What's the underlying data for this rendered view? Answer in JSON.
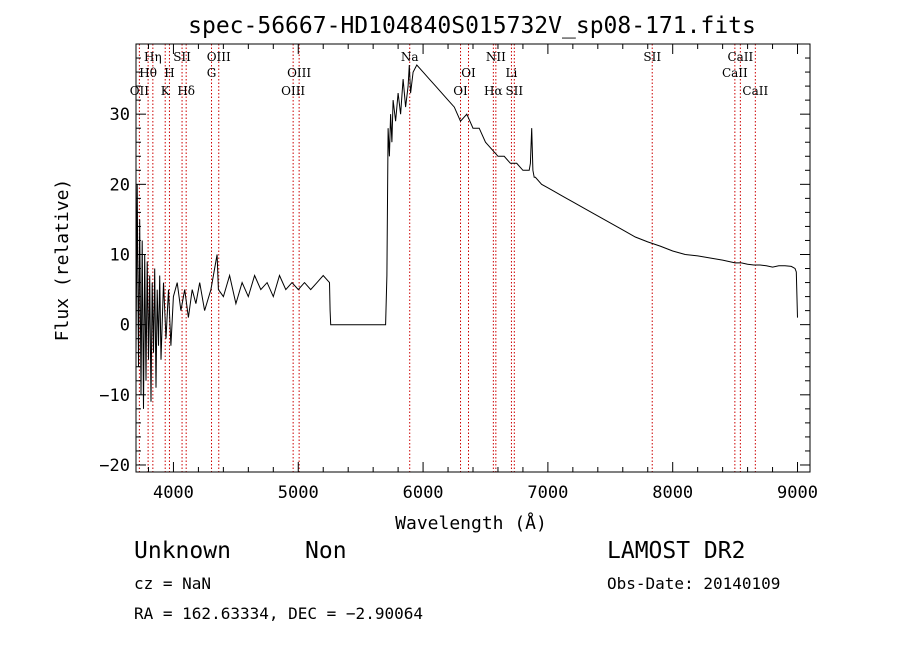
{
  "chart_data": {
    "type": "line",
    "title": "spec-56667-HD104840S015732V_sp08-171.fits",
    "xlabel": "Wavelength (Å)",
    "ylabel": "Flux (relative)",
    "xlim": [
      3700,
      9100
    ],
    "ylim": [
      -21,
      40
    ],
    "xticks": [
      4000,
      5000,
      6000,
      7000,
      8000,
      9000
    ],
    "xtick_labels": [
      "4000",
      "5000",
      "6000",
      "7000",
      "8000",
      "9000"
    ],
    "yticks": [
      -20,
      -10,
      0,
      10,
      20,
      30
    ],
    "ytick_labels": [
      "−20",
      "−10",
      "0",
      "10",
      "20",
      "30"
    ],
    "grid": false,
    "series": [
      {
        "color": "#000000",
        "x": [
          3700,
          3710,
          3720,
          3730,
          3740,
          3750,
          3760,
          3770,
          3780,
          3790,
          3800,
          3810,
          3820,
          3830,
          3840,
          3850,
          3860,
          3870,
          3880,
          3890,
          3900,
          3920,
          3940,
          3960,
          3980,
          4000,
          4030,
          4060,
          4090,
          4120,
          4150,
          4180,
          4210,
          4250,
          4300,
          4350,
          4360,
          4400,
          4450,
          4500,
          4550,
          4600,
          4650,
          4700,
          4750,
          4800,
          4850,
          4900,
          4950,
          5000,
          5050,
          5100,
          5150,
          5200,
          5250,
          5255,
          5260,
          5400,
          5600,
          5700,
          5710,
          5720,
          5730,
          5740,
          5750,
          5760,
          5780,
          5800,
          5820,
          5840,
          5860,
          5880,
          5890,
          5900,
          5920,
          5950,
          6000,
          6050,
          6100,
          6150,
          6200,
          6250,
          6300,
          6350,
          6400,
          6450,
          6500,
          6550,
          6600,
          6650,
          6700,
          6750,
          6800,
          6850,
          6860,
          6870,
          6880,
          6890,
          6900,
          6950,
          7000,
          7050,
          7100,
          7150,
          7200,
          7250,
          7300,
          7400,
          7500,
          7600,
          7700,
          7800,
          7900,
          8000,
          8100,
          8200,
          8300,
          8400,
          8500,
          8550,
          8600,
          8650,
          8700,
          8750,
          8800,
          8850,
          8900,
          8950,
          8980,
          8990,
          9000
        ],
        "values": [
          -4,
          20,
          -6,
          15,
          -10,
          12,
          -12,
          10,
          -8,
          9,
          -5,
          7,
          -11,
          6,
          -4,
          8,
          -9,
          5,
          -3,
          7,
          -5,
          6,
          -2,
          5,
          -3,
          4,
          6,
          2,
          5,
          1,
          5,
          3,
          6,
          2,
          5,
          10,
          5,
          4,
          7,
          3,
          6,
          4,
          7,
          5,
          6,
          4,
          7,
          5,
          6,
          5,
          6,
          5,
          6,
          7,
          6,
          2,
          0,
          0,
          0,
          0,
          7,
          28,
          24,
          30,
          26,
          32,
          29,
          33,
          30,
          35,
          31,
          34,
          37,
          33,
          36,
          37,
          36,
          35,
          34,
          33,
          32,
          31,
          29,
          30,
          28,
          28,
          26,
          25,
          24,
          24,
          23,
          23,
          22,
          22,
          23,
          28,
          22,
          21,
          21,
          20,
          19.5,
          19,
          18.5,
          18,
          17.5,
          17,
          16.5,
          15.5,
          14.5,
          13.5,
          12.5,
          11.8,
          11.2,
          10.5,
          10,
          9.8,
          9.5,
          9.2,
          8.8,
          8.8,
          8.6,
          8.5,
          8.5,
          8.4,
          8.2,
          8.4,
          8.4,
          8.3,
          8.0,
          7.5,
          1
        ]
      }
    ],
    "lines": [
      {
        "label": "Hη",
        "x": 3835,
        "row": 0
      },
      {
        "label": "Hθ",
        "x": 3797,
        "row": 1
      },
      {
        "label": "OII",
        "x": 3727,
        "row": 2
      },
      {
        "label": "H",
        "x": 3968,
        "row": 1
      },
      {
        "label": "K",
        "x": 3934,
        "row": 2
      },
      {
        "label": "SII",
        "x": 4069,
        "row": 0
      },
      {
        "label": "Hδ",
        "x": 4102,
        "row": 2
      },
      {
        "label": "OIII",
        "x": 4363,
        "row": 0
      },
      {
        "label": "G",
        "x": 4305,
        "row": 1
      },
      {
        "label": "OIII",
        "x": 5007,
        "row": 1
      },
      {
        "label": "OIII",
        "x": 4959,
        "row": 2
      },
      {
        "label": "Na",
        "x": 5893,
        "row": 0
      },
      {
        "label": "OI",
        "x": 6364,
        "row": 1
      },
      {
        "label": "OI",
        "x": 6300,
        "row": 2
      },
      {
        "label": "NII",
        "x": 6583,
        "row": 0
      },
      {
        "label": "Hα",
        "x": 6563,
        "row": 2
      },
      {
        "label": "Li",
        "x": 6708,
        "row": 1
      },
      {
        "label": "SII",
        "x": 6731,
        "row": 2
      },
      {
        "label": "SII",
        "x": 7836,
        "row": 0
      },
      {
        "label": "CaII",
        "x": 8542,
        "row": 0
      },
      {
        "label": "CaII",
        "x": 8498,
        "row": 1
      },
      {
        "label": "CaII",
        "x": 8662,
        "row": 2
      }
    ],
    "line_color": "#cc0000"
  },
  "footer": {
    "class_label": "Unknown",
    "subclass_label": "Non",
    "survey": "LAMOST DR2",
    "cz": "cz = NaN",
    "obs_date": "Obs-Date: 20140109",
    "coords": "RA = 162.63334, DEC =  −2.90064"
  }
}
